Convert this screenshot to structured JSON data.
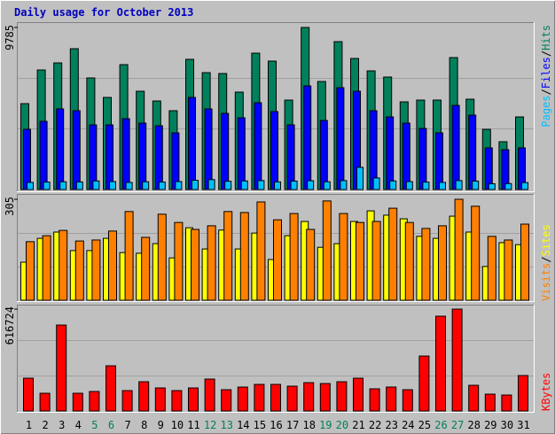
{
  "chart_data": [
    {
      "type": "bar",
      "title": "Daily usage for October 2013",
      "title_color": "#0000c0",
      "ylim": [
        0,
        9785
      ],
      "yticks": [
        9785
      ],
      "legend_separator": "/",
      "series": [
        {
          "name": "Hits",
          "color": "#00805c",
          "values": [
            5186,
            7218,
            7646,
            8502,
            6737,
            5561,
            7539,
            5935,
            5347,
            4759,
            7860,
            7058,
            7005,
            5882,
            8234,
            7753,
            5400,
            9785,
            6523,
            8929,
            7913,
            7165,
            6791,
            5293,
            5400,
            5400,
            7967,
            5454,
            3636,
            2887,
            4384
          ]
        },
        {
          "name": "Files",
          "color": "#0000ff",
          "values": [
            3636,
            4117,
            4866,
            4759,
            3903,
            3903,
            4278,
            4010,
            3850,
            3422,
            5561,
            4866,
            4598,
            4331,
            5240,
            4705,
            3903,
            6256,
            4171,
            6149,
            5935,
            4759,
            4384,
            4010,
            3689,
            3422,
            5080,
            4491,
            2513,
            2406,
            2513
          ]
        },
        {
          "name": "Pages",
          "color": "#00c0ff",
          "values": [
            430,
            450,
            470,
            460,
            520,
            480,
            430,
            470,
            450,
            480,
            560,
            600,
            500,
            520,
            540,
            460,
            510,
            530,
            470,
            540,
            1340,
            700,
            520,
            480,
            450,
            430,
            540,
            510,
            350,
            360,
            420
          ]
        }
      ]
    },
    {
      "type": "bar",
      "ylim": [
        0,
        305
      ],
      "yticks": [
        305
      ],
      "legend_separator": "/",
      "series": [
        {
          "name": "Sites",
          "color": "#ffff00",
          "values": [
            115,
            187,
            206,
            150,
            150,
            187,
            144,
            142,
            171,
            128,
            219,
            155,
            212,
            155,
            203,
            123,
            195,
            238,
            160,
            171,
            238,
            270,
            257,
            246,
            193,
            187,
            254,
            206,
            102,
            174,
            168
          ]
        },
        {
          "name": "Visits",
          "color": "#ff8000",
          "values": [
            177,
            195,
            211,
            179,
            182,
            209,
            268,
            190,
            260,
            235,
            214,
            225,
            268,
            265,
            297,
            243,
            262,
            214,
            300,
            262,
            235,
            238,
            278,
            235,
            217,
            225,
            305,
            284,
            193,
            182,
            230
          ]
        }
      ]
    },
    {
      "type": "bar",
      "ylim": [
        0,
        616724
      ],
      "yticks": [
        616724
      ],
      "categories": [
        "1",
        "2",
        "3",
        "4",
        "5",
        "6",
        "7",
        "8",
        "9",
        "10",
        "11",
        "12",
        "13",
        "14",
        "15",
        "16",
        "17",
        "18",
        "19",
        "20",
        "21",
        "22",
        "23",
        "24",
        "25",
        "26",
        "27",
        "28",
        "29",
        "30",
        "31"
      ],
      "label_colors": [
        "#000000",
        "#000000",
        "#000000",
        "#000000",
        "#00805c",
        "#00805c",
        "#000000",
        "#000000",
        "#000000",
        "#000000",
        "#000000",
        "#00805c",
        "#00805c",
        "#000000",
        "#000000",
        "#000000",
        "#000000",
        "#000000",
        "#00805c",
        "#00805c",
        "#000000",
        "#000000",
        "#000000",
        "#000000",
        "#000000",
        "#00805c",
        "#00805c",
        "#000000",
        "#000000",
        "#000000",
        "#000000"
      ],
      "series": [
        {
          "name": "KBytes",
          "color": "#ff0000",
          "values": [
            198423,
            107256,
            520193,
            107256,
            117982,
            273510,
            123345,
            176970,
            139429,
            123345,
            139429,
            193060,
            128708,
            144800,
            160889,
            160889,
            150163,
            171610,
            166247,
            176970,
            198423,
            134066,
            144800,
            128708,
            332502,
            573830,
            616724,
            155526,
            101894,
            96531,
            214518
          ]
        }
      ]
    }
  ]
}
